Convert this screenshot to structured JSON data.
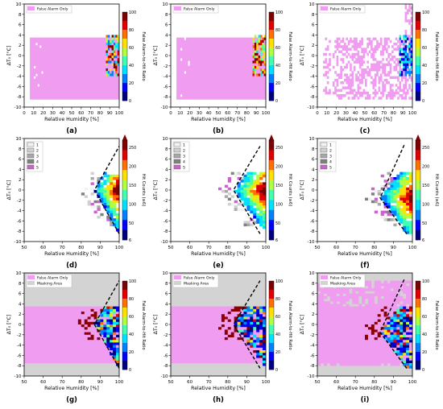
{
  "figure": {
    "panel_letters": [
      "(a)",
      "(b)",
      "(c)",
      "(d)",
      "(e)",
      "(f)",
      "(g)",
      "(h)",
      "(i)"
    ],
    "colors": {
      "false_alarm": "#f09cf0",
      "masking": "#d3d3d3",
      "colormap": [
        "#00007f",
        "#0000ff",
        "#0080ff",
        "#00e0ff",
        "#40ffb0",
        "#b0ff40",
        "#ffe000",
        "#ff7000",
        "#e00000",
        "#7f0000"
      ],
      "grays": [
        "#f2f2f2",
        "#d0d0d0",
        "#a8a8a8",
        "#808080",
        "#d060d0"
      ]
    }
  },
  "chart_data": [
    {
      "id": "a",
      "type": "heatmap",
      "panel": "(a)",
      "xlabel": "Relative Humidity [%]",
      "ylabel": "ΔT₀ [°C]",
      "xlim": [
        0,
        100
      ],
      "ylim": [
        -10,
        10
      ],
      "xticks": [
        0,
        10,
        20,
        30,
        40,
        50,
        60,
        70,
        80,
        90,
        100
      ],
      "yticks": [
        -10,
        -8,
        -6,
        -4,
        -2,
        0,
        2,
        4,
        6,
        8,
        10
      ],
      "legend": [
        "False Alarm Only"
      ],
      "legend_position": "top-left",
      "colorbar": {
        "label": "False Alarm-to-Hit Ratio",
        "ticks": [
          0,
          20,
          40,
          60,
          80,
          100
        ]
      }
    },
    {
      "id": "b",
      "type": "heatmap",
      "panel": "(b)",
      "xlabel": "Relative Humidity [%]",
      "ylabel": "ΔT₀ [°C]",
      "xlim": [
        0,
        100
      ],
      "ylim": [
        -10,
        10
      ],
      "xticks": [
        0,
        10,
        20,
        30,
        40,
        50,
        60,
        70,
        80,
        90,
        100
      ],
      "yticks": [
        -10,
        -8,
        -6,
        -4,
        -2,
        0,
        2,
        4,
        6,
        8,
        10
      ],
      "legend": [
        "False Alarm Only"
      ],
      "legend_position": "top-left",
      "colorbar": {
        "label": "False Alarm-to-Hit Ratio",
        "ticks": [
          0,
          20,
          40,
          60,
          80,
          100
        ]
      }
    },
    {
      "id": "c",
      "type": "heatmap",
      "panel": "(c)",
      "xlabel": "Relative Humidity [%]",
      "ylabel": "ΔT₀ [°C]",
      "xlim": [
        0,
        100
      ],
      "ylim": [
        -10,
        10
      ],
      "xticks": [
        0,
        10,
        20,
        30,
        40,
        50,
        60,
        70,
        80,
        90,
        100
      ],
      "yticks": [
        -10,
        -8,
        -6,
        -4,
        -2,
        0,
        2,
        4,
        6,
        8,
        10
      ],
      "legend": [
        "False Alarm Only"
      ],
      "legend_position": "top-left",
      "colorbar": {
        "label": "False Alarm-to-Hit Ratio",
        "ticks": [
          0,
          20,
          40,
          60,
          80,
          100
        ]
      }
    },
    {
      "id": "d",
      "type": "heatmap",
      "panel": "(d)",
      "xlabel": "Relative Humidity [%]",
      "ylabel": "ΔT₀ [°C]",
      "xlim": [
        50,
        100
      ],
      "ylim": [
        -10,
        10
      ],
      "xticks": [
        50,
        60,
        70,
        80,
        90,
        100
      ],
      "yticks": [
        -10,
        -8,
        -6,
        -4,
        -2,
        0,
        2,
        4,
        6,
        8,
        10
      ],
      "legend": [
        "1",
        "2",
        "3",
        "4",
        "5"
      ],
      "legend_position": "top-left",
      "colorbar": {
        "label": "Hit Counts (≥6)",
        "ticks": [
          6,
          50,
          100,
          150,
          200,
          250
        ]
      },
      "boundary_line": [
        [
          100,
          -8.5
        ],
        [
          87,
          0
        ],
        [
          100,
          8.5
        ]
      ]
    },
    {
      "id": "e",
      "type": "heatmap",
      "panel": "(e)",
      "xlabel": "Relative Humidity [%]",
      "ylabel": "ΔT₀ [°C]",
      "xlim": [
        50,
        100
      ],
      "ylim": [
        -10,
        10
      ],
      "xticks": [
        50,
        60,
        70,
        80,
        90,
        100
      ],
      "yticks": [
        -10,
        -8,
        -6,
        -4,
        -2,
        0,
        2,
        4,
        6,
        8,
        10
      ],
      "legend": [
        "1",
        "2",
        "3",
        "4",
        "5"
      ],
      "legend_position": "top-left",
      "colorbar": {
        "label": "Hit Counts (≥6)",
        "ticks": [
          6,
          50,
          100,
          150,
          200,
          250
        ]
      },
      "boundary_line": [
        [
          97,
          -8.5
        ],
        [
          83,
          0
        ],
        [
          97,
          8.5
        ]
      ]
    },
    {
      "id": "f",
      "type": "heatmap",
      "panel": "(f)",
      "xlabel": "Relative Humidity [%]",
      "ylabel": "ΔT₀ [°C]",
      "xlim": [
        50,
        100
      ],
      "ylim": [
        -10,
        10
      ],
      "xticks": [
        50,
        60,
        70,
        80,
        90,
        100
      ],
      "yticks": [
        -10,
        -8,
        -6,
        -4,
        -2,
        0,
        2,
        4,
        6,
        8,
        10
      ],
      "legend": [
        "1",
        "2",
        "3",
        "4",
        "5"
      ],
      "legend_position": "top-left",
      "colorbar": {
        "label": "Hit Counts (≥6)",
        "ticks": [
          6,
          50,
          100,
          150,
          200,
          250
        ]
      },
      "boundary_line": [
        [
          97,
          -8.5
        ],
        [
          83,
          -1.5
        ],
        [
          96,
          9
        ]
      ]
    },
    {
      "id": "g",
      "type": "heatmap",
      "panel": "(g)",
      "xlabel": "Relative Humidity [%]",
      "ylabel": "ΔT₀ [°C]",
      "xlim": [
        50,
        100
      ],
      "ylim": [
        -10,
        10
      ],
      "xticks": [
        50,
        60,
        70,
        80,
        90,
        100
      ],
      "yticks": [
        -10,
        -8,
        -6,
        -4,
        -2,
        0,
        2,
        4,
        6,
        8,
        10
      ],
      "legend": [
        "False Alarm Only",
        "Masking Area"
      ],
      "legend_position": "top-left",
      "colorbar": {
        "label": "False Alarm-to-Hit Ratio",
        "ticks": [
          0,
          20,
          40,
          60,
          80,
          100
        ]
      },
      "boundary_line": [
        [
          100,
          -8.5
        ],
        [
          87,
          0
        ],
        [
          100,
          8.5
        ]
      ]
    },
    {
      "id": "h",
      "type": "heatmap",
      "panel": "(h)",
      "xlabel": "Relative Humidity [%]",
      "ylabel": "ΔT₀ [°C]",
      "xlim": [
        50,
        100
      ],
      "ylim": [
        -10,
        10
      ],
      "xticks": [
        50,
        60,
        70,
        80,
        90,
        100
      ],
      "yticks": [
        -10,
        -8,
        -6,
        -4,
        -2,
        0,
        2,
        4,
        6,
        8,
        10
      ],
      "legend": [
        "False Alarm Only",
        "Masking Area"
      ],
      "legend_position": "top-left",
      "colorbar": {
        "label": "False Alarm-to-Hit Ratio",
        "ticks": [
          0,
          20,
          40,
          60,
          80,
          100
        ]
      },
      "boundary_line": [
        [
          97,
          -8.5
        ],
        [
          83,
          0
        ],
        [
          97,
          8.5
        ]
      ]
    },
    {
      "id": "i",
      "type": "heatmap",
      "panel": "(i)",
      "xlabel": "Relative Humidity [%]",
      "ylabel": "ΔT₀ [°C]",
      "xlim": [
        50,
        100
      ],
      "ylim": [
        -10,
        10
      ],
      "xticks": [
        50,
        60,
        70,
        80,
        90,
        100
      ],
      "yticks": [
        -10,
        -8,
        -6,
        -4,
        -2,
        0,
        2,
        4,
        6,
        8,
        10
      ],
      "legend": [
        "False Alarm Only",
        "Masking Area"
      ],
      "legend_position": "top-left",
      "colorbar": {
        "label": "False Alarm-to-Hit Ratio",
        "ticks": [
          0,
          20,
          40,
          60,
          80,
          100
        ]
      },
      "boundary_line": [
        [
          97,
          -8.5
        ],
        [
          83,
          -1.5
        ],
        [
          96,
          9
        ]
      ]
    }
  ]
}
